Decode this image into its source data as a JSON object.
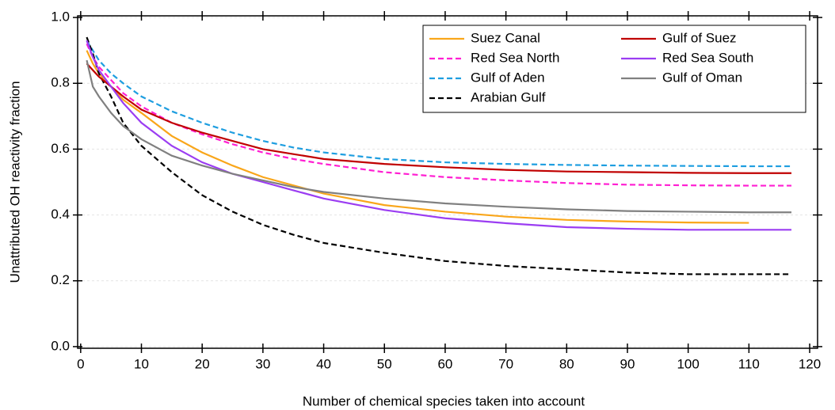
{
  "chart_data": {
    "type": "line",
    "xlabel": "Number of chemical species taken into account",
    "ylabel": "Unattributed OH reactivity fraction",
    "x": [
      1,
      2,
      3,
      5,
      7,
      10,
      15,
      20,
      25,
      30,
      35,
      40,
      50,
      60,
      70,
      80,
      90,
      100,
      110,
      117
    ],
    "series": [
      {
        "name": "Suez Canal",
        "color": "#f9a61a",
        "dashed": false,
        "values": [
          0.9,
          0.86,
          0.83,
          0.79,
          0.75,
          0.71,
          0.64,
          0.59,
          0.55,
          0.515,
          0.49,
          0.465,
          0.43,
          0.41,
          0.395,
          0.385,
          0.38,
          0.377,
          0.376,
          null
        ]
      },
      {
        "name": "Red Sea North",
        "color": "#ff1fd2",
        "dashed": true,
        "values": [
          0.92,
          0.88,
          0.85,
          0.81,
          0.77,
          0.73,
          0.68,
          0.645,
          0.615,
          0.59,
          0.57,
          0.555,
          0.53,
          0.515,
          0.505,
          0.497,
          0.492,
          0.49,
          0.489,
          0.489
        ]
      },
      {
        "name": "Gulf of Aden",
        "color": "#1e9ee0",
        "dashed": true,
        "values": [
          0.93,
          0.9,
          0.87,
          0.83,
          0.8,
          0.76,
          0.715,
          0.68,
          0.65,
          0.625,
          0.605,
          0.59,
          0.57,
          0.56,
          0.555,
          0.552,
          0.55,
          0.549,
          0.548,
          0.548
        ]
      },
      {
        "name": "Arabian Gulf",
        "color": "#000000",
        "dashed": true,
        "values": [
          0.94,
          0.89,
          0.83,
          0.76,
          0.68,
          0.61,
          0.53,
          0.46,
          0.41,
          0.37,
          0.34,
          0.315,
          0.285,
          0.26,
          0.245,
          0.235,
          0.225,
          0.22,
          0.22,
          0.22
        ]
      },
      {
        "name": "Gulf of Suez",
        "color": "#c00000",
        "dashed": false,
        "values": [
          0.86,
          0.84,
          0.82,
          0.79,
          0.76,
          0.72,
          0.68,
          0.65,
          0.625,
          0.6,
          0.585,
          0.57,
          0.555,
          0.545,
          0.537,
          0.532,
          0.53,
          0.528,
          0.527,
          0.527
        ]
      },
      {
        "name": "Red Sea South",
        "color": "#9b3df2",
        "dashed": false,
        "values": [
          0.93,
          0.88,
          0.84,
          0.79,
          0.74,
          0.68,
          0.61,
          0.56,
          0.525,
          0.5,
          0.475,
          0.45,
          0.415,
          0.39,
          0.375,
          0.363,
          0.358,
          0.355,
          0.355,
          0.355
        ]
      },
      {
        "name": "Gulf of Oman",
        "color": "#808080",
        "dashed": false,
        "values": [
          0.87,
          0.79,
          0.76,
          0.71,
          0.67,
          0.63,
          0.58,
          0.55,
          0.525,
          0.505,
          0.485,
          0.47,
          0.45,
          0.435,
          0.425,
          0.417,
          0.412,
          0.41,
          0.408,
          0.408
        ]
      }
    ],
    "xlim": [
      -0.5,
      121.3
    ],
    "ylim": [
      -0.005,
      1.005
    ],
    "xticks": [
      0,
      10,
      20,
      30,
      40,
      50,
      60,
      70,
      80,
      90,
      100,
      110,
      120
    ],
    "yticks": [
      {
        "value": 0,
        "label": "0.0"
      },
      0.2,
      0.4,
      0.6,
      0.8,
      {
        "value": 1,
        "label": "1.0"
      }
    ],
    "grid": true
  }
}
